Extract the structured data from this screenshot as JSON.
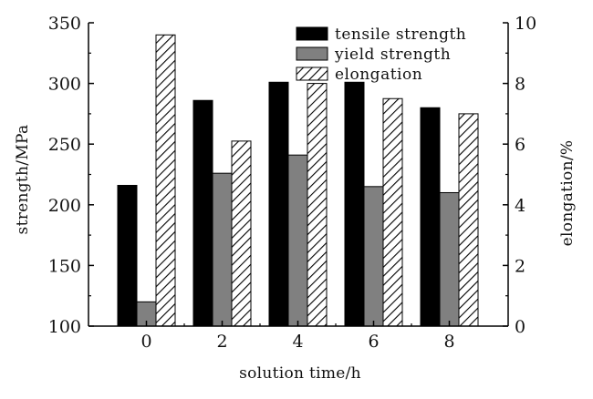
{
  "chart_data": {
    "type": "bar",
    "title": "",
    "xlabel": "solution time/h",
    "ylabel_left": "strength/MPa",
    "ylabel_right": "elongation/%",
    "categories": [
      "0",
      "2",
      "4",
      "6",
      "8"
    ],
    "ylim_left": [
      100,
      350
    ],
    "yticks_left": [
      100,
      150,
      200,
      250,
      300,
      350
    ],
    "ylim_right": [
      0,
      10
    ],
    "yticks_right": [
      0,
      2,
      4,
      6,
      8,
      10
    ],
    "series": [
      {
        "name": "tensile strength",
        "axis": "left",
        "values": [
          216,
          286,
          301,
          301,
          280
        ],
        "style": "solid",
        "color": "#000000"
      },
      {
        "name": "yield strength",
        "axis": "left",
        "values": [
          120,
          226,
          241,
          215,
          210
        ],
        "style": "solid",
        "color": "#808080"
      },
      {
        "name": "elongation",
        "axis": "right",
        "values": [
          9.6,
          6.1,
          8.0,
          7.5,
          7.0
        ],
        "style": "hatched",
        "color": "#000000"
      }
    ],
    "legend_position": "top-right",
    "grid": false
  }
}
